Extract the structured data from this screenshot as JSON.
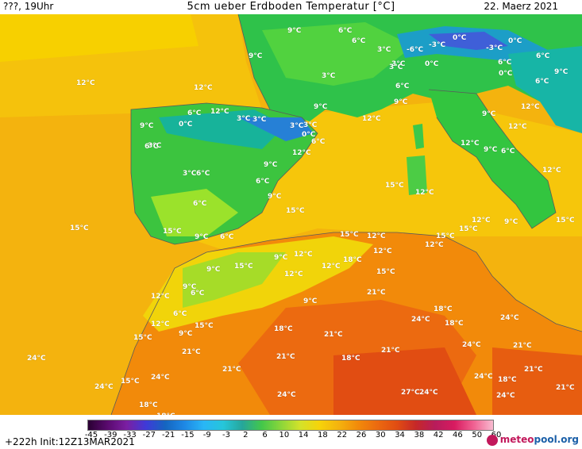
{
  "header": {
    "left": "???, 19Uhr",
    "title": "5cm ueber Erdboden Temperatur [°C]",
    "date": "22. Maerz 2021"
  },
  "map": {
    "labels": [
      "9°C",
      "6°C",
      "6°C",
      "9°C",
      "-3°C",
      "0°C",
      "-3°C",
      "-6°C",
      "3°C",
      "0°C",
      "0°C",
      "3°C",
      "6°C",
      "6°C",
      "3°C",
      "0°C",
      "3°C",
      "6°C",
      "6°C",
      "12°C",
      "12°C",
      "9°C",
      "12°C",
      "6°C",
      "12°C",
      "3°C",
      "3°C",
      "9°C",
      "0°C",
      "9°C",
      "3°C",
      "0°C",
      "3°C",
      "6°C",
      "12°C",
      "9°C",
      "12°C",
      "12°C",
      "9°C",
      "9°C",
      "6°C",
      "3°C",
      "12°C",
      "6°C",
      "3°C",
      "6°C",
      "9°C",
      "6°C",
      "6°C",
      "9°C",
      "12°C",
      "15°C",
      "15°C",
      "12°C",
      "12°C",
      "15°C",
      "15°C",
      "9°C",
      "15°C",
      "9°C",
      "6°C",
      "15°C",
      "15°C",
      "15°C",
      "12°C",
      "12°C",
      "9°C",
      "12°C",
      "9°C",
      "18°C",
      "15°C",
      "12°C",
      "12°C",
      "15°C",
      "12°C",
      "9°C",
      "21°C",
      "9°C",
      "6°C",
      "12°C",
      "6°C",
      "15°C",
      "12°C",
      "15°C",
      "9°C",
      "18°C",
      "18°C",
      "21°C",
      "24°C",
      "21°C",
      "18°C",
      "24°C",
      "21°C",
      "21°C",
      "24°C",
      "21°C",
      "21°C",
      "18°C",
      "21°C",
      "24°C",
      "24°C",
      "18°C",
      "24°C",
      "24°C",
      "15°C",
      "18°C",
      "27°C",
      "24°C",
      "24°C",
      "24°C",
      "21°C",
      "18°C"
    ]
  },
  "legend": {
    "ticks": [
      "-45",
      "-39",
      "-33",
      "-27",
      "-21",
      "-15",
      "-9",
      "-3",
      "2",
      "6",
      "10",
      "14",
      "18",
      "22",
      "26",
      "30",
      "34",
      "38",
      "42",
      "46",
      "50",
      "60"
    ]
  },
  "footer": {
    "run": "+222h  Init:12Z13MAR2021",
    "brand_a": "meteo",
    "brand_b": "pool.org"
  }
}
